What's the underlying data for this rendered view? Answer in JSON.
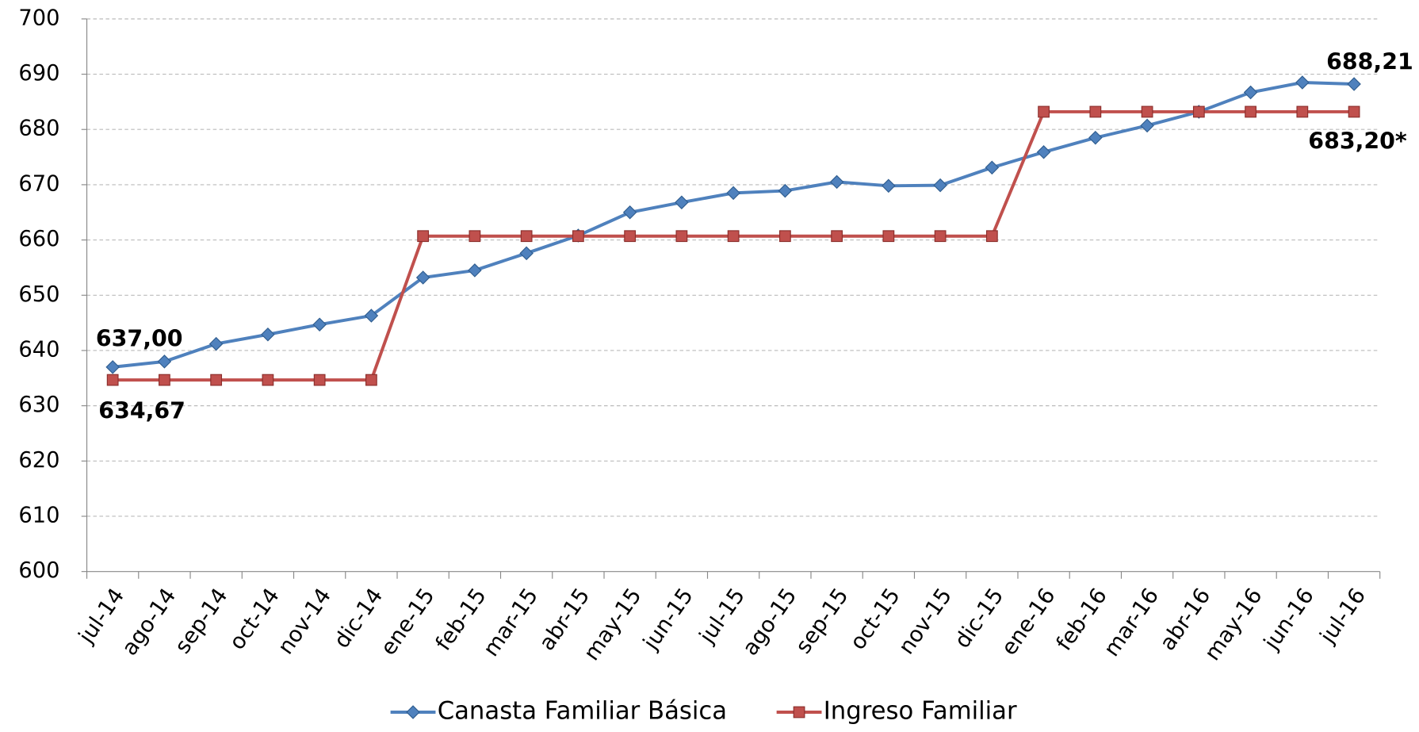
{
  "chart_data": {
    "type": "line",
    "categories": [
      "jul-14",
      "ago-14",
      "sep-14",
      "oct-14",
      "nov-14",
      "dic-14",
      "ene-15",
      "feb-15",
      "mar-15",
      "abr-15",
      "may-15",
      "jun-15",
      "jul-15",
      "ago-15",
      "sep-15",
      "oct-15",
      "nov-15",
      "dic-15",
      "ene-16",
      "feb-16",
      "mar-16",
      "abr-16",
      "may-16",
      "jun-16",
      "jul-16"
    ],
    "series": [
      {
        "name": "Canasta Familiar Básica",
        "color": "#4f81bd",
        "marker": "diamond",
        "values": [
          637.0,
          638.0,
          641.2,
          642.9,
          644.7,
          646.3,
          653.2,
          654.5,
          657.6,
          660.8,
          665.0,
          666.8,
          668.5,
          668.9,
          670.5,
          669.8,
          669.9,
          673.1,
          675.9,
          678.5,
          680.7,
          683.2,
          686.7,
          688.5,
          688.21
        ]
      },
      {
        "name": "Ingreso Familiar",
        "color": "#c0504d",
        "marker": "square",
        "values": [
          634.67,
          634.67,
          634.67,
          634.67,
          634.67,
          634.67,
          660.7,
          660.7,
          660.7,
          660.7,
          660.7,
          660.7,
          660.7,
          660.7,
          660.7,
          660.7,
          660.7,
          660.7,
          683.2,
          683.2,
          683.2,
          683.2,
          683.2,
          683.2,
          683.2
        ]
      }
    ],
    "annotations": [
      "637,00",
      "634,67",
      "688,21",
      "683,20*"
    ],
    "ylim": [
      600,
      700
    ],
    "yticks": [
      600,
      610,
      620,
      630,
      640,
      650,
      660,
      670,
      680,
      690,
      700
    ],
    "grid": true,
    "legend": "bottom"
  }
}
